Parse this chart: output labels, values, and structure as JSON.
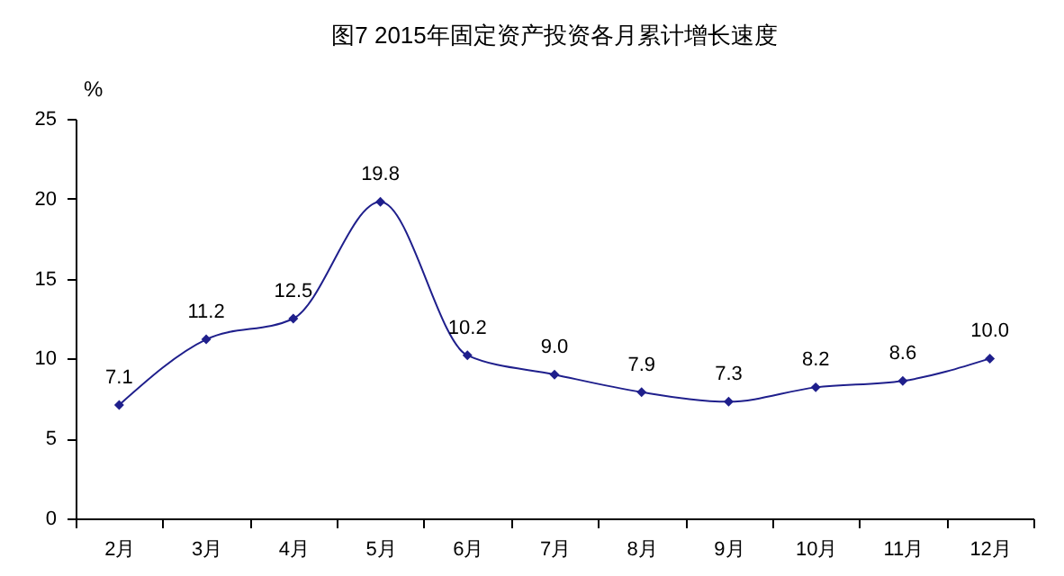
{
  "chart_data": {
    "type": "line",
    "title": "图7  2015年固定资产投资各月累计增长速度",
    "ylabel": "%",
    "categories": [
      "2月",
      "3月",
      "4月",
      "5月",
      "6月",
      "7月",
      "8月",
      "9月",
      "10月",
      "11月",
      "12月"
    ],
    "series": [
      {
        "color": "#1f1f8c",
        "values": [
          7.1,
          11.2,
          12.5,
          19.8,
          10.2,
          9.0,
          7.9,
          7.3,
          8.2,
          8.6,
          10.0
        ]
      }
    ],
    "value_labels": [
      "7.1",
      "11.2",
      "12.5",
      "19.8",
      "10.2",
      "9.0",
      "7.9",
      "7.3",
      "8.2",
      "8.6",
      "10.0"
    ],
    "ylim": [
      0,
      25
    ],
    "yticks": [
      0,
      5,
      10,
      15,
      20,
      25
    ],
    "grid": false,
    "legend": false,
    "marker": "diamond",
    "line_style": "solid"
  }
}
